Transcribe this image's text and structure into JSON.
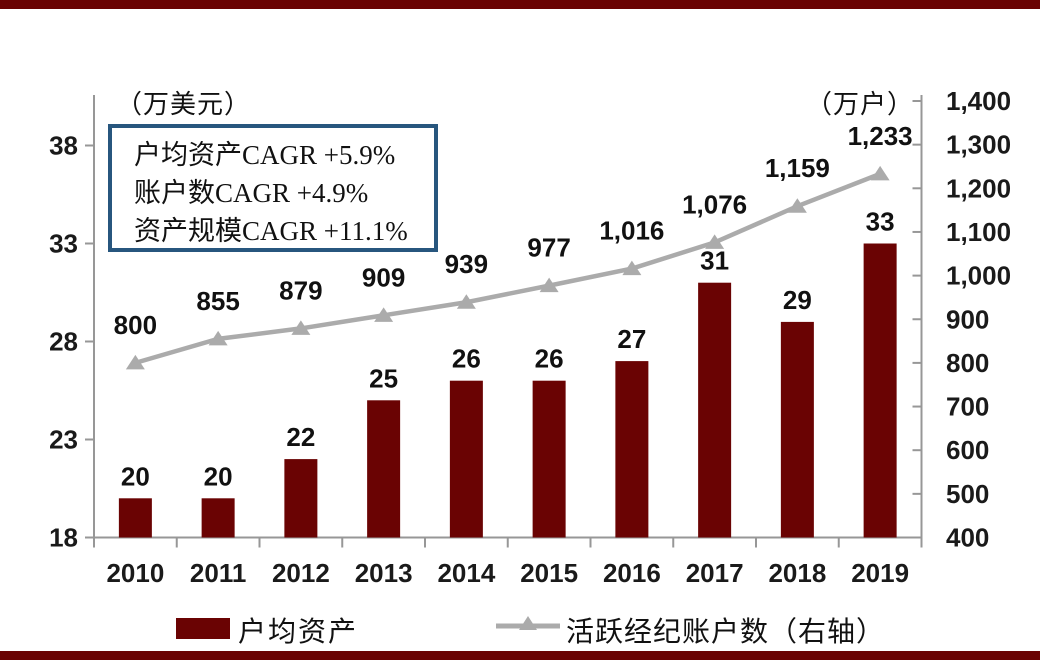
{
  "frame": {
    "background": "#ffffff",
    "top_bar_color": "#6a0303",
    "bottom_bar_color": "#6a0303"
  },
  "chart_data": {
    "type": "bar",
    "subtype": "combo-bar-line-dual-axis",
    "categories": [
      "2010",
      "2011",
      "2012",
      "2013",
      "2014",
      "2015",
      "2016",
      "2017",
      "2018",
      "2019"
    ],
    "series": [
      {
        "name": "户均资产",
        "type": "bar",
        "axis": "left",
        "color": "#6a0303",
        "values": [
          20,
          20,
          22,
          25,
          26,
          26,
          27,
          31,
          29,
          33
        ],
        "labels": [
          "20",
          "20",
          "22",
          "25",
          "26",
          "26",
          "27",
          "31",
          "29",
          "33"
        ]
      },
      {
        "name": "活跃经纪账户数（右轴）",
        "type": "line",
        "axis": "right",
        "color": "#ababab",
        "values": [
          800,
          855,
          879,
          909,
          939,
          977,
          1016,
          1076,
          1159,
          1233
        ],
        "labels": [
          "800",
          "855",
          "879",
          "909",
          "939",
          "977",
          "1,016",
          "1,076",
          "1,159",
          "1,233"
        ]
      }
    ],
    "left_axis": {
      "title": "（万美元）",
      "min": 18,
      "max": 38,
      "ticks": [
        18,
        23,
        28,
        33,
        38
      ],
      "tick_labels": [
        "18",
        "23",
        "28",
        "33",
        "38"
      ]
    },
    "right_axis": {
      "title": "（万户）",
      "min": 400,
      "max": 1400,
      "ticks": [
        400,
        500,
        600,
        700,
        800,
        900,
        1000,
        1100,
        1200,
        1300,
        1400
      ],
      "tick_labels": [
        "400",
        "500",
        "600",
        "700",
        "800",
        "900",
        "1,000",
        "1,100",
        "1,200",
        "1,300",
        "1,400"
      ]
    },
    "annotation": {
      "lines": [
        "户均资产CAGR +5.9%",
        "账户数CAGR +4.9%",
        "资产规模CAGR +11.1%"
      ],
      "border_color": "#27567e"
    },
    "legend": [
      {
        "label": "户均资产",
        "marker": "bar-swatch",
        "color": "#6a0303"
      },
      {
        "label": "活跃经纪账户数（右轴）",
        "marker": "line-triangle",
        "color": "#ababab"
      }
    ],
    "axis_color": "#979797",
    "grid": false,
    "legend_position": "bottom"
  }
}
